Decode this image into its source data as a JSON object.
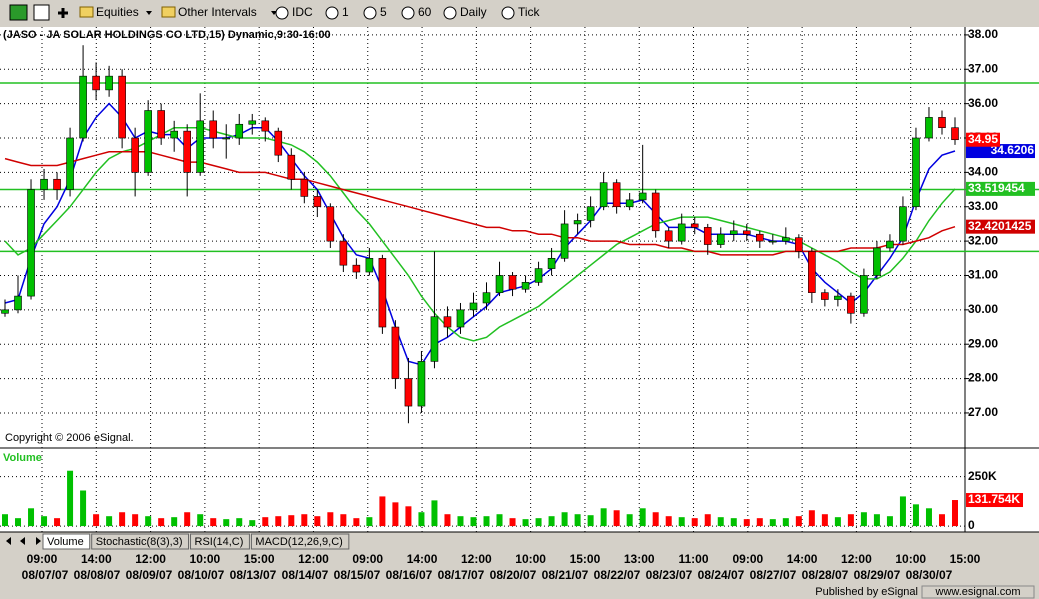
{
  "toolbar": {
    "buttons": [
      "Equities",
      "Other Intervals",
      "IDC",
      "1",
      "5",
      "60",
      "Daily",
      "Tick"
    ]
  },
  "chart_data": {
    "type": "candlestick",
    "title": "(JASO - JA SOLAR HOLDINGS CO LTD,15) Dynamic,9:30-16:00",
    "copyright": "Copyright © 2006 eSignal.",
    "volume_title": "Volume",
    "x_time_labels": [
      "09:00",
      "14:00",
      "12:00",
      "10:00",
      "15:00",
      "12:00",
      "09:00",
      "14:00",
      "12:00",
      "10:00",
      "15:00",
      "13:00",
      "11:00",
      "09:00",
      "14:00",
      "12:00",
      "10:00",
      "15:00"
    ],
    "x_date_labels": [
      "08/07/07",
      "08/08/07",
      "08/09/07",
      "08/10/07",
      "08/13/07",
      "08/14/07",
      "08/15/07",
      "08/16/07",
      "08/17/07",
      "08/20/07",
      "08/21/07",
      "08/22/07",
      "08/23/07",
      "08/24/07",
      "08/27/07",
      "08/28/07",
      "08/29/07",
      "08/30/07"
    ],
    "ylim": [
      25.98,
      38.23
    ],
    "yticks": [
      {
        "value": 27,
        "label": "27.00"
      },
      {
        "value": 28,
        "label": "28.00"
      },
      {
        "value": 29,
        "label": "29.00"
      },
      {
        "value": 30,
        "label": "30.00"
      },
      {
        "value": 31,
        "label": "31.00"
      },
      {
        "value": 32,
        "label": "32.00"
      },
      {
        "value": 33,
        "label": "33.00"
      },
      {
        "value": 34,
        "label": "34.00"
      },
      {
        "value": 35,
        "label": "35.00"
      },
      {
        "value": 36,
        "label": "36.00"
      },
      {
        "value": 37,
        "label": "37.00"
      },
      {
        "value": 38,
        "label": "38.00"
      }
    ],
    "grid": true,
    "up_color": "#00c000",
    "down_color": "#ff0000",
    "levels": [
      36.6,
      33.5,
      31.7
    ],
    "level_color": "#22c022",
    "ohlc": [
      [
        29.9,
        30.3,
        29.8,
        30.0
      ],
      [
        30.0,
        31.0,
        29.9,
        30.4
      ],
      [
        30.4,
        33.8,
        30.3,
        33.5
      ],
      [
        33.5,
        34.1,
        33.2,
        33.8
      ],
      [
        33.8,
        34.0,
        33.2,
        33.5
      ],
      [
        33.5,
        35.3,
        33.3,
        35.0
      ],
      [
        35.0,
        37.7,
        34.9,
        36.8
      ],
      [
        36.8,
        37.2,
        36.1,
        36.4
      ],
      [
        36.4,
        37.1,
        36.2,
        36.8
      ],
      [
        36.8,
        37.0,
        34.7,
        35.0
      ],
      [
        35.0,
        35.3,
        33.3,
        34.0
      ],
      [
        34.0,
        36.1,
        33.9,
        35.8
      ],
      [
        35.8,
        36.0,
        34.8,
        35.0
      ],
      [
        35.0,
        35.5,
        34.6,
        35.2
      ],
      [
        35.2,
        35.4,
        33.3,
        34.0
      ],
      [
        34.0,
        36.3,
        33.9,
        35.5
      ],
      [
        35.5,
        35.8,
        34.7,
        35.0
      ],
      [
        35.0,
        35.4,
        34.4,
        35.0
      ],
      [
        35.0,
        35.7,
        34.8,
        35.4
      ],
      [
        35.4,
        35.7,
        35.1,
        35.5
      ],
      [
        35.5,
        35.6,
        34.9,
        35.2
      ],
      [
        35.2,
        35.3,
        34.3,
        34.5
      ],
      [
        34.5,
        34.7,
        33.5,
        33.8
      ],
      [
        33.8,
        34.0,
        33.1,
        33.3
      ],
      [
        33.3,
        33.5,
        32.7,
        33.0
      ],
      [
        33.0,
        33.1,
        31.8,
        32.0
      ],
      [
        32.0,
        32.2,
        31.1,
        31.3
      ],
      [
        31.3,
        31.5,
        30.9,
        31.1
      ],
      [
        31.1,
        31.8,
        31.0,
        31.5
      ],
      [
        31.5,
        31.6,
        29.3,
        29.5
      ],
      [
        29.5,
        29.7,
        27.7,
        28.0
      ],
      [
        28.0,
        28.6,
        26.7,
        27.2
      ],
      [
        27.2,
        28.8,
        27.0,
        28.5
      ],
      [
        28.5,
        31.7,
        28.3,
        29.8
      ],
      [
        29.8,
        30.1,
        29.2,
        29.5
      ],
      [
        29.5,
        30.2,
        29.3,
        30.0
      ],
      [
        30.0,
        30.5,
        29.8,
        30.2
      ],
      [
        30.2,
        30.8,
        30.0,
        30.5
      ],
      [
        30.5,
        31.4,
        30.4,
        31.0
      ],
      [
        31.0,
        31.1,
        30.4,
        30.6
      ],
      [
        30.6,
        31.0,
        30.5,
        30.8
      ],
      [
        30.8,
        31.4,
        30.7,
        31.2
      ],
      [
        31.2,
        31.8,
        31.0,
        31.5
      ],
      [
        31.5,
        32.9,
        31.4,
        32.5
      ],
      [
        32.5,
        32.8,
        32.2,
        32.6
      ],
      [
        32.6,
        33.3,
        32.4,
        33.0
      ],
      [
        33.0,
        34.0,
        32.9,
        33.7
      ],
      [
        33.7,
        33.8,
        32.8,
        33.0
      ],
      [
        33.0,
        33.4,
        32.9,
        33.2
      ],
      [
        33.2,
        34.8,
        33.1,
        33.4
      ],
      [
        33.4,
        33.5,
        32.1,
        32.3
      ],
      [
        32.3,
        32.4,
        31.8,
        32.0
      ],
      [
        32.0,
        32.8,
        31.9,
        32.5
      ],
      [
        32.5,
        32.7,
        32.2,
        32.4
      ],
      [
        32.4,
        32.5,
        31.6,
        31.9
      ],
      [
        31.9,
        32.4,
        31.8,
        32.2
      ],
      [
        32.2,
        32.6,
        32.0,
        32.3
      ],
      [
        32.3,
        32.5,
        32.0,
        32.2
      ],
      [
        32.2,
        32.3,
        31.8,
        32.0
      ],
      [
        32.0,
        32.2,
        31.9,
        32.0
      ],
      [
        32.0,
        32.4,
        31.9,
        32.1
      ],
      [
        32.1,
        32.2,
        31.5,
        31.7
      ],
      [
        31.7,
        31.8,
        30.2,
        30.5
      ],
      [
        30.5,
        30.6,
        30.1,
        30.3
      ],
      [
        30.3,
        30.6,
        30.1,
        30.4
      ],
      [
        30.4,
        30.5,
        29.6,
        29.9
      ],
      [
        29.9,
        31.2,
        29.8,
        31.0
      ],
      [
        31.0,
        32.0,
        30.9,
        31.8
      ],
      [
        31.8,
        32.2,
        31.7,
        32.0
      ],
      [
        32.0,
        33.3,
        31.9,
        33.0
      ],
      [
        33.0,
        35.3,
        32.9,
        35.0
      ],
      [
        35.0,
        35.9,
        34.9,
        35.6
      ],
      [
        35.6,
        35.8,
        35.1,
        35.3
      ],
      [
        35.3,
        35.6,
        34.8,
        34.95
      ]
    ],
    "series": [
      {
        "color": "#0000e0",
        "values": [
          30.2,
          30.3,
          31.5,
          32.5,
          33.0,
          33.8,
          35.0,
          35.6,
          36.0,
          35.6,
          35.0,
          35.2,
          35.1,
          35.1,
          34.7,
          35.0,
          35.0,
          35.0,
          35.1,
          35.3,
          35.3,
          34.9,
          34.4,
          33.9,
          33.5,
          32.8,
          32.1,
          31.6,
          31.5,
          30.6,
          29.5,
          28.5,
          28.4,
          29.0,
          29.2,
          29.5,
          29.8,
          30.1,
          30.5,
          30.6,
          30.7,
          30.9,
          31.2,
          31.8,
          32.2,
          32.6,
          33.1,
          33.1,
          33.1,
          33.2,
          32.8,
          32.4,
          32.4,
          32.4,
          32.2,
          32.2,
          32.2,
          32.2,
          32.1,
          32.0,
          32.0,
          31.9,
          31.2,
          30.8,
          30.5,
          30.2,
          30.5,
          31.0,
          31.5,
          32.1,
          33.2,
          34.1,
          34.5,
          34.6206
        ]
      },
      {
        "color": "#22c022",
        "values": [
          32.0,
          31.6,
          31.8,
          32.2,
          32.6,
          33.0,
          33.5,
          34.0,
          34.4,
          34.6,
          34.7,
          34.9,
          35.1,
          35.3,
          35.3,
          35.3,
          35.2,
          35.1,
          35.0,
          35.0,
          35.0,
          34.9,
          34.8,
          34.6,
          34.3,
          33.9,
          33.4,
          32.9,
          32.5,
          32.0,
          31.5,
          31.0,
          30.4,
          29.9,
          29.5,
          29.2,
          29.1,
          29.2,
          29.5,
          29.7,
          29.9,
          30.1,
          30.4,
          30.7,
          31.0,
          31.3,
          31.6,
          31.9,
          32.1,
          32.3,
          32.5,
          32.6,
          32.7,
          32.7,
          32.7,
          32.6,
          32.5,
          32.4,
          32.3,
          32.2,
          32.1,
          32.0,
          31.8,
          31.6,
          31.4,
          31.1,
          30.9,
          30.9,
          31.1,
          31.5,
          32.0,
          32.6,
          33.1,
          33.519454
        ]
      },
      {
        "color": "#d00000",
        "values": [
          34.4,
          34.3,
          34.2,
          34.2,
          34.2,
          34.3,
          34.4,
          34.5,
          34.6,
          34.6,
          34.6,
          34.6,
          34.5,
          34.4,
          34.3,
          34.3,
          34.2,
          34.1,
          34.0,
          34.0,
          34.0,
          33.9,
          33.8,
          33.8,
          33.7,
          33.6,
          33.5,
          33.4,
          33.3,
          33.2,
          33.1,
          33.0,
          32.9,
          32.8,
          32.7,
          32.6,
          32.5,
          32.4,
          32.4,
          32.3,
          32.3,
          32.2,
          32.2,
          32.1,
          32.1,
          32.0,
          32.0,
          32.0,
          31.9,
          31.9,
          31.9,
          31.8,
          31.8,
          31.7,
          31.7,
          31.6,
          31.6,
          31.6,
          31.6,
          31.6,
          31.7,
          31.7,
          31.7,
          31.7,
          31.7,
          31.8,
          31.8,
          31.8,
          31.9,
          31.9,
          32.0,
          32.1,
          32.3,
          32.4201425
        ]
      }
    ],
    "volume": [
      60000,
      40000,
      90000,
      50000,
      40000,
      280000,
      180000,
      60000,
      50000,
      70000,
      60000,
      50000,
      40000,
      45000,
      70000,
      60000,
      40000,
      35000,
      40000,
      30000,
      45000,
      50000,
      55000,
      60000,
      50000,
      70000,
      60000,
      40000,
      45000,
      150000,
      120000,
      100000,
      70000,
      130000,
      60000,
      50000,
      45000,
      50000,
      60000,
      40000,
      35000,
      40000,
      50000,
      70000,
      60000,
      55000,
      90000,
      80000,
      60000,
      90000,
      70000,
      50000,
      45000,
      40000,
      60000,
      45000,
      40000,
      35000,
      40000,
      35000,
      40000,
      50000,
      80000,
      60000,
      45000,
      60000,
      70000,
      60000,
      50000,
      150000,
      110000,
      90000,
      60000,
      131754
    ],
    "volume_value_label": "131.754K",
    "vlim": [
      -30000,
      395000
    ],
    "vticks": [
      0,
      {
        "value": 250000,
        "label": "250K"
      }
    ]
  },
  "tabs": [
    "Volume",
    "Stochastic(8(3),3)",
    "RSI(14,C)",
    "MACD(12,26,9,C)"
  ],
  "footer": {
    "publisher": "Published by eSignal",
    "url": "www.esignal.com"
  }
}
